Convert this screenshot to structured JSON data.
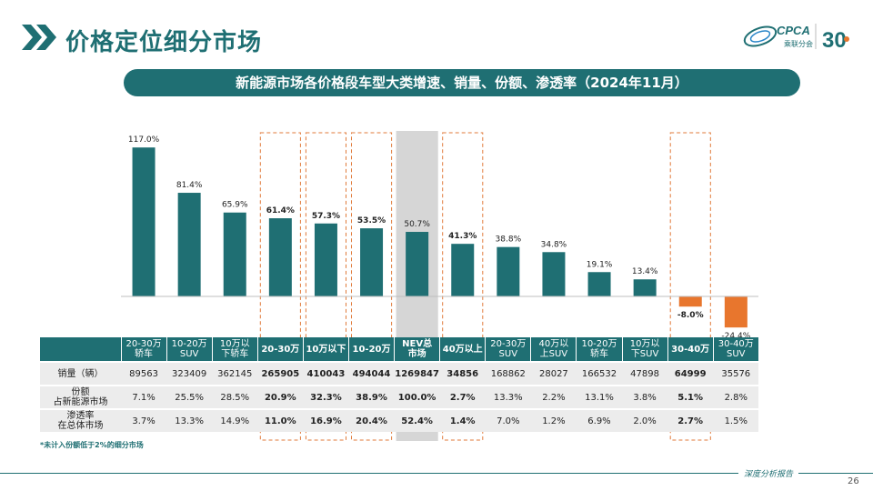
{
  "header": {
    "title": "价格定位细分市场",
    "logo_text": "CPCA",
    "logo_cn": "乘联分会",
    "logo_badge": "30"
  },
  "subtitle": "新能源市场各价格段车型大类增速、销量、份额、渗透率（2024年11月）",
  "colors": {
    "teal": "#1f6f73",
    "orange": "#e8762d",
    "grey_highlight": "#cfcfcf",
    "dash": "#e07a3a"
  },
  "chart_data": {
    "type": "bar",
    "categories": [
      "20-30万\n轿车",
      "10-20万\nSUV",
      "10万以\n下轿车",
      "20-30万",
      "10万以下",
      "10-20万",
      "NEV总\n市场",
      "40万以上",
      "20-30万\nSUV",
      "40万以\n上SUV",
      "10-20万\n轿车",
      "10万以\n下SUV",
      "30-40万",
      "30-40万\nSUV"
    ],
    "values": [
      117.0,
      81.4,
      65.9,
      61.4,
      57.3,
      53.5,
      50.7,
      41.3,
      38.8,
      34.8,
      19.1,
      13.4,
      -8.0,
      -24.4
    ],
    "value_labels": [
      "117.0%",
      "81.4%",
      "65.9%",
      "61.4%",
      "57.3%",
      "53.5%",
      "50.7%",
      "41.3%",
      "38.8%",
      "34.8%",
      "19.1%",
      "13.4%",
      "-8.0%",
      "-24.4%"
    ],
    "bold_labels": [
      false,
      false,
      false,
      true,
      true,
      true,
      false,
      true,
      false,
      false,
      false,
      false,
      true,
      false
    ],
    "highlight_dashed": [
      3,
      4,
      5,
      7,
      12
    ],
    "highlight_grey": [
      6
    ],
    "ylim": [
      -30,
      120
    ]
  },
  "table": {
    "headers": [
      "20-30万\n轿车",
      "10-20万\nSUV",
      "10万以\n下轿车",
      "20-30万",
      "10万以下",
      "10-20万",
      "NEV总\n市场",
      "40万以上",
      "20-30万\nSUV",
      "40万以\n上SUV",
      "10-20万\n轿车",
      "10万以\n下SUV",
      "30-40万",
      "30-40万\nSUV"
    ],
    "bold_cols": [
      3,
      4,
      5,
      6,
      7,
      12
    ],
    "rows": [
      {
        "label": "销量（辆）",
        "values": [
          "89563",
          "323409",
          "362145",
          "265905",
          "410043",
          "494044",
          "1269847",
          "34856",
          "168862",
          "28027",
          "166532",
          "47898",
          "64999",
          "35576"
        ]
      },
      {
        "label": "份额\n占新能源市场",
        "values": [
          "7.1%",
          "25.5%",
          "28.5%",
          "20.9%",
          "32.3%",
          "38.9%",
          "100.0%",
          "2.7%",
          "13.3%",
          "2.2%",
          "13.1%",
          "3.8%",
          "5.1%",
          "2.8%"
        ]
      },
      {
        "label": "渗透率\n在总体市场",
        "values": [
          "3.7%",
          "13.3%",
          "14.9%",
          "11.0%",
          "16.9%",
          "20.4%",
          "52.4%",
          "1.4%",
          "7.0%",
          "1.2%",
          "6.9%",
          "2.0%",
          "2.7%",
          "1.5%"
        ]
      }
    ]
  },
  "footnote": "*未计入份额低于2%的细分市场",
  "bottom_motto": "深度分析报告",
  "page_number": "26"
}
